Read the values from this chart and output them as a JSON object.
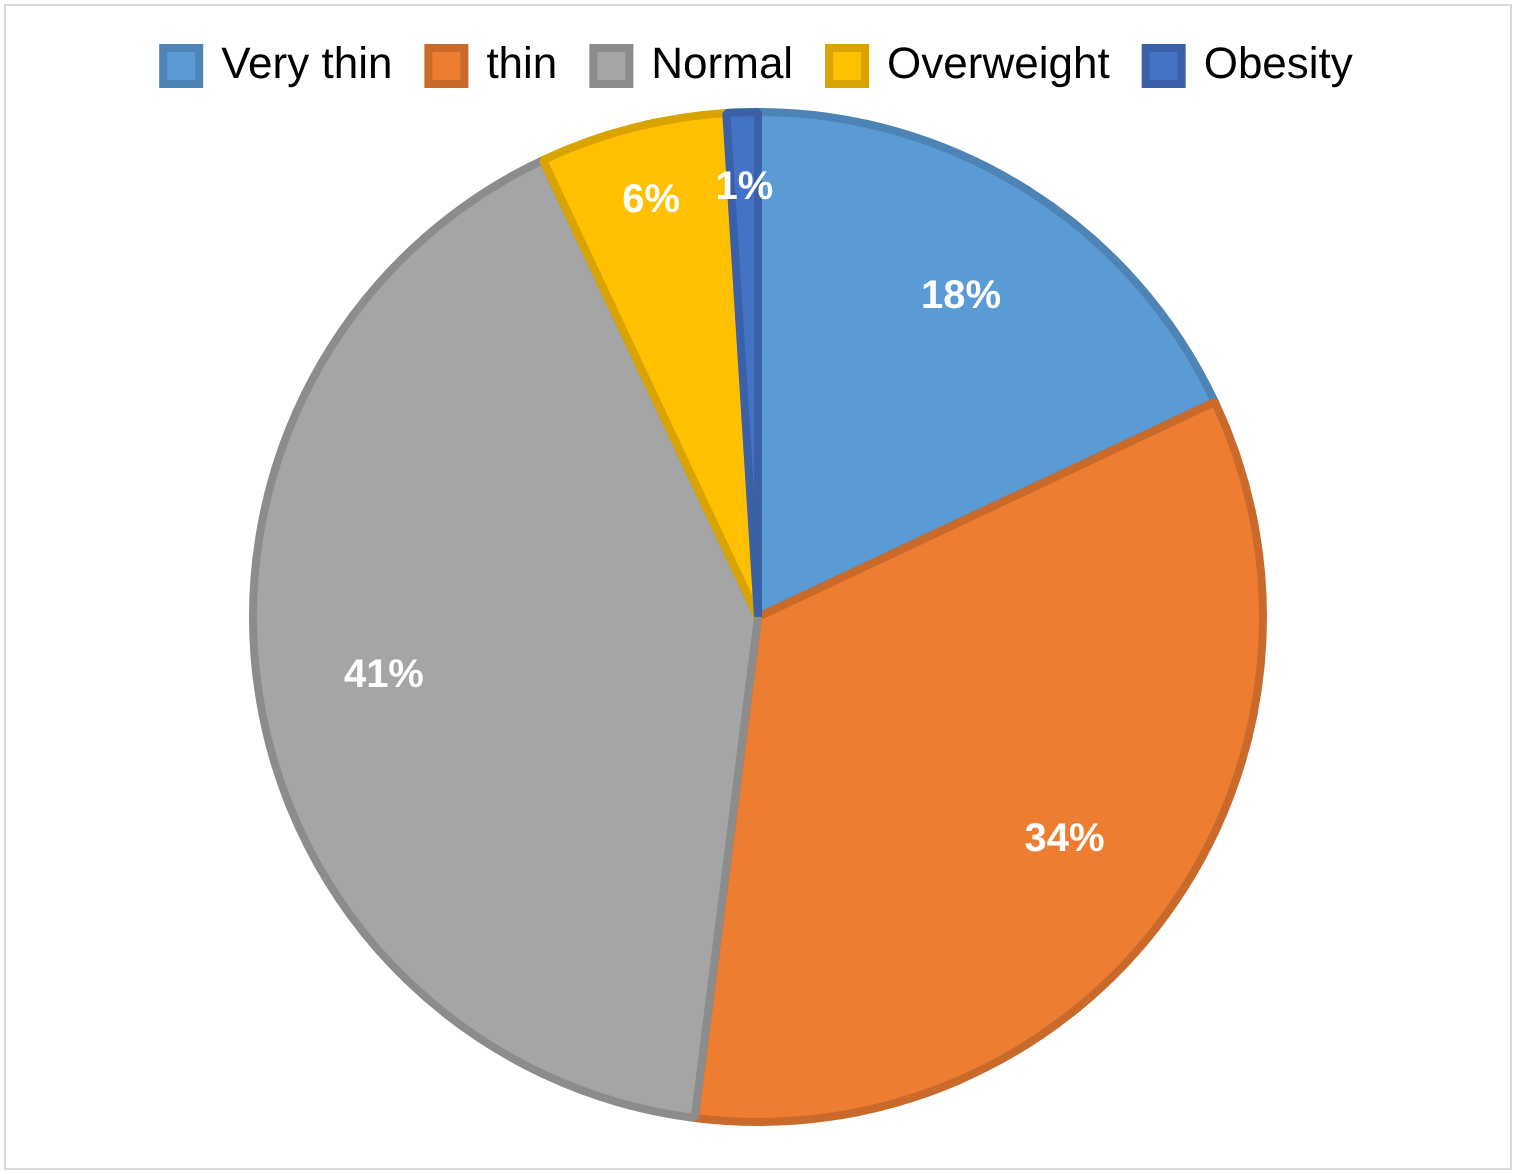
{
  "chart_data": {
    "type": "pie",
    "categories": [
      "Very thin",
      "thin",
      "Normal",
      "Overweight",
      "Obesity"
    ],
    "values": [
      18,
      34,
      41,
      6,
      1
    ],
    "colors": [
      "#5b9bd5",
      "#ed7d31",
      "#a5a5a5",
      "#ffc000",
      "#4472c4"
    ],
    "value_labels": [
      "18%",
      "34%",
      "41%",
      "6%",
      "1%"
    ],
    "legend": "top"
  }
}
